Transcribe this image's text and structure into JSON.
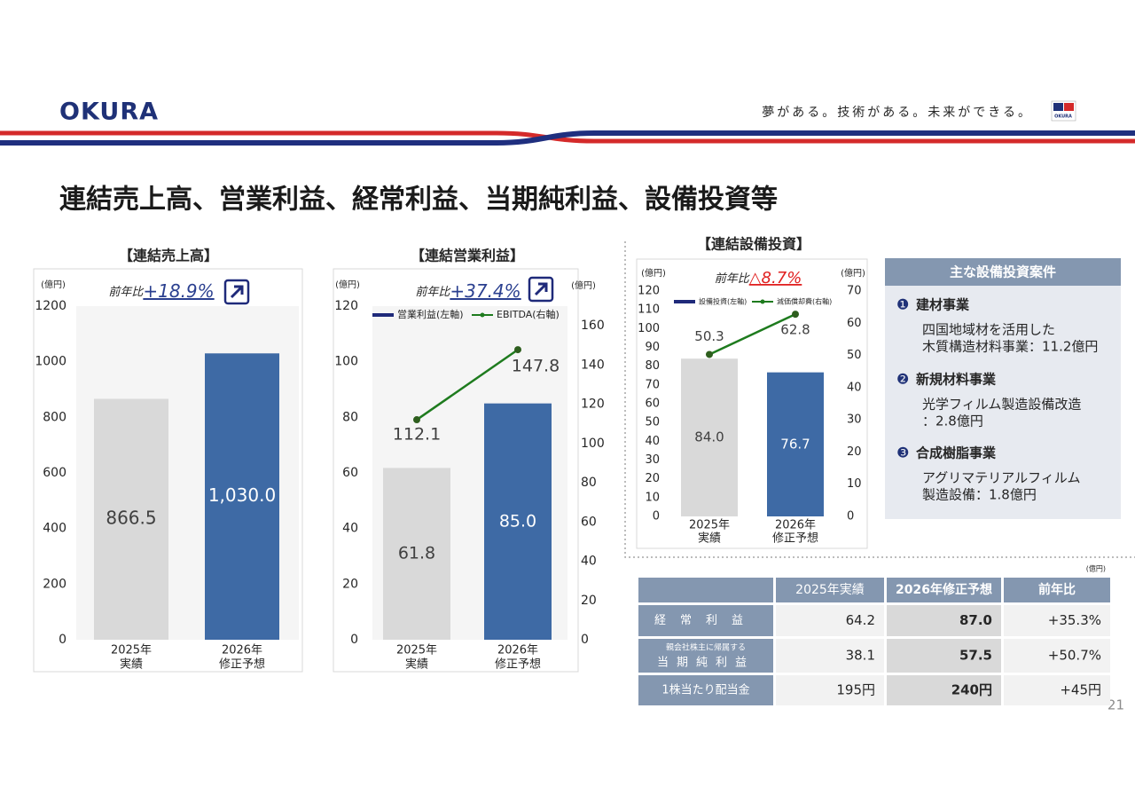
{
  "header": {
    "logo": "OKURA",
    "slogan": "夢がある。技術がある。未来ができる。",
    "mark_text": "OKURA"
  },
  "title": "連結売上高、営業利益、経常利益、当期純利益、設備投資等",
  "chart_data": [
    {
      "type": "bar",
      "title": "【連結売上高】",
      "y_unit": "(億円)",
      "yoy_label": "前年比",
      "yoy_value": "+18.9%",
      "yoy_color": "#2a3f8f",
      "categories": [
        "2025年",
        "2026年"
      ],
      "category_sublabels": [
        "実績",
        "修正予想"
      ],
      "series": [
        {
          "values": [
            866.5,
            1030.0
          ],
          "value_labels": [
            "866.5",
            "1,030.0"
          ],
          "bar_colors": [
            "#d9d9d9",
            "#3e6aa5"
          ]
        }
      ],
      "ylim": [
        0,
        1200
      ],
      "yticks": [
        0,
        200,
        400,
        600,
        800,
        1000,
        1200
      ]
    },
    {
      "type": "combo",
      "title": "【連結営業利益】",
      "y_unit": "(億円)",
      "y2_unit": "(億円)",
      "yoy_label": "前年比",
      "yoy_value": "+37.4%",
      "yoy_color": "#2a3f8f",
      "categories": [
        "2025年",
        "2026年"
      ],
      "category_sublabels": [
        "実績",
        "修正予想"
      ],
      "series": [
        {
          "name": "営業利益(左軸)",
          "type": "bar",
          "color": "#1f2a7a",
          "values": [
            61.8,
            85.0
          ],
          "value_labels": [
            "61.8",
            "85.0"
          ],
          "bar_colors": [
            "#d9d9d9",
            "#3e6aa5"
          ]
        },
        {
          "name": "EBITDA(右軸)",
          "type": "line",
          "color": "#1e7b1e",
          "axis": "y2",
          "values": [
            112.1,
            147.8
          ]
        }
      ],
      "ylim": [
        0,
        120
      ],
      "yticks": [
        0,
        20,
        40,
        60,
        80,
        100,
        120
      ],
      "y2lim": [
        0,
        170
      ],
      "y2ticks": [
        0,
        20,
        40,
        60,
        80,
        100,
        120,
        140,
        160
      ]
    },
    {
      "type": "combo",
      "title": "【連結設備投資】",
      "y_unit": "(億円)",
      "y2_unit": "(億円)",
      "yoy_label": "前年比",
      "yoy_value": "△8.7%",
      "yoy_color": "#e02020",
      "categories": [
        "2025年",
        "2026年"
      ],
      "category_sublabels": [
        "実績",
        "修正予想"
      ],
      "series": [
        {
          "name": "設備投資(左軸)",
          "type": "bar",
          "color": "#1f2a7a",
          "values": [
            84.0,
            76.7
          ],
          "value_labels": [
            "84.0",
            "76.7"
          ],
          "bar_colors": [
            "#d9d9d9",
            "#3e6aa5"
          ]
        },
        {
          "name": "減価償却費(右軸)",
          "type": "line",
          "color": "#1e7b1e",
          "axis": "y2",
          "values": [
            50.3,
            62.8
          ]
        }
      ],
      "ylim": [
        0,
        120
      ],
      "yticks": [
        0,
        10,
        20,
        30,
        40,
        50,
        60,
        70,
        80,
        90,
        100,
        110,
        120
      ],
      "y2lim": [
        0,
        70
      ],
      "y2ticks": [
        0,
        10,
        20,
        30,
        40,
        50,
        60,
        70
      ]
    }
  ],
  "projects": {
    "title": "主な設備投資案件",
    "items": [
      {
        "marker": "❶",
        "heading": "建材事業",
        "lines": [
          "四国地域材を活用した",
          "木質構造材料事業：11.2億円"
        ]
      },
      {
        "marker": "❷",
        "heading": "新規材料事業",
        "lines": [
          "光学フィルム製造設備改造",
          "：2.8億円"
        ]
      },
      {
        "marker": "❸",
        "heading": "合成樹脂事業",
        "lines": [
          "アグリマテリアルフィルム",
          "製造設備：1.8億円"
        ]
      }
    ]
  },
  "table": {
    "unit": "(億円)",
    "columns": [
      "2025年実績",
      "2026年修正予想",
      "前年比"
    ],
    "rows": [
      {
        "label": [
          "経常利益"
        ],
        "cells": [
          "64.2",
          "87.0",
          "+35.3%"
        ]
      },
      {
        "label": [
          "親会社株主に帰属する",
          "当期純利益"
        ],
        "cells": [
          "38.1",
          "57.5",
          "+50.7%"
        ]
      },
      {
        "label": [
          "1株当たり配当金"
        ],
        "cells": [
          "195円",
          "240円",
          "+45円"
        ]
      }
    ]
  },
  "page_number": "21"
}
